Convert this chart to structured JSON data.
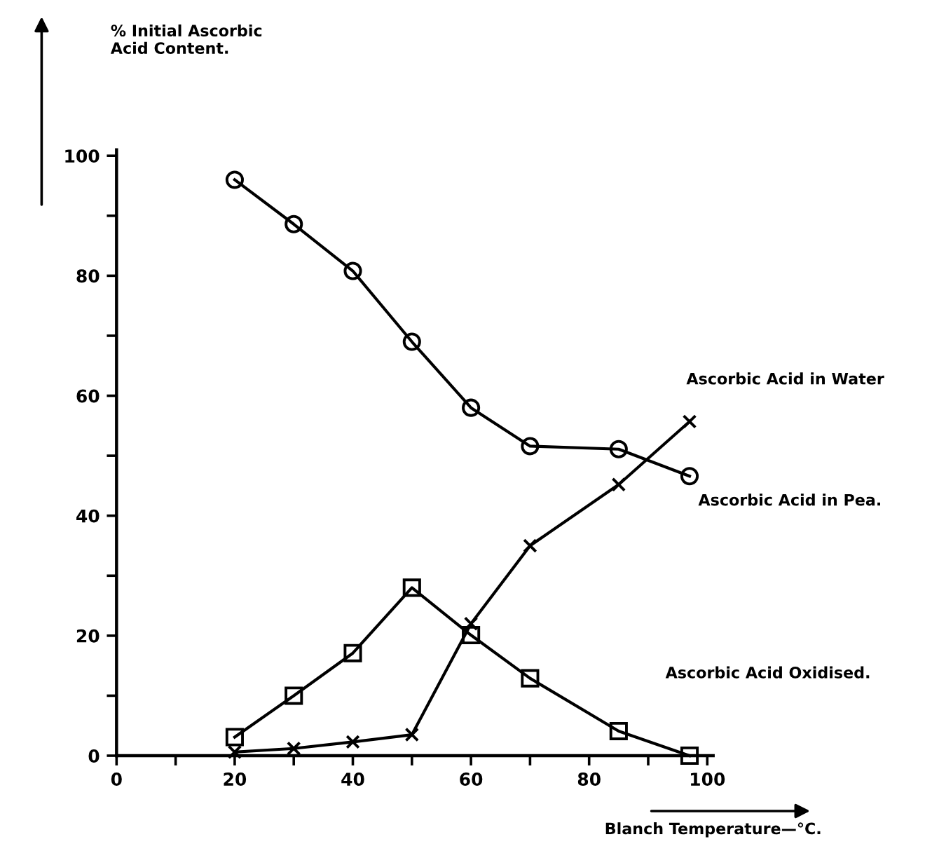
{
  "chart_data": {
    "type": "line",
    "xlabel": "Blanch Temperature—°C.",
    "series": [
      {
        "color": "#000000",
        "marker": "circle",
        "x": [
          20,
          30,
          40,
          50,
          60,
          70,
          85,
          97
        ],
        "values": [
          96,
          88.6,
          80.8,
          69,
          58,
          51.6,
          51.1,
          46.6
        ]
      },
      {
        "color": "#000000",
        "marker": "cross",
        "x": [
          20,
          30,
          40,
          50,
          60,
          70,
          85,
          97
        ],
        "values": [
          0.6,
          1.2,
          2.3,
          3.5,
          22,
          35,
          45.2,
          55.7
        ]
      },
      {
        "color": "#000000",
        "marker": "square",
        "x": [
          20,
          30,
          40,
          50,
          60,
          70,
          85,
          97
        ],
        "values": [
          3.1,
          10,
          17.1,
          28,
          20.1,
          12.9,
          4.1,
          0
        ]
      }
    ],
    "annotations": [
      "% Initial Ascorbic\nAcid Content.",
      "Ascorbic Acid in Water",
      "Ascorbic Acid in Pea.",
      "Ascorbic Acid Oxidised."
    ],
    "xlim": [
      0,
      101
    ],
    "ylim": [
      0,
      101
    ],
    "xticks": [
      0,
      {
        "value": 10,
        "label": null
      },
      20,
      {
        "value": 30,
        "label": null
      },
      40,
      {
        "value": 50,
        "label": null
      },
      60,
      {
        "value": 70,
        "label": null
      },
      80,
      {
        "value": 90,
        "label": null
      },
      100
    ],
    "yticks": [
      0,
      {
        "value": 10,
        "label": null
      },
      20,
      {
        "value": 30,
        "label": null
      },
      40,
      {
        "value": 50,
        "label": null
      },
      60,
      {
        "value": 70,
        "label": null
      },
      80,
      {
        "value": 90,
        "label": null
      },
      100
    ],
    "line_style": "solid",
    "grid": false,
    "legend": false
  }
}
